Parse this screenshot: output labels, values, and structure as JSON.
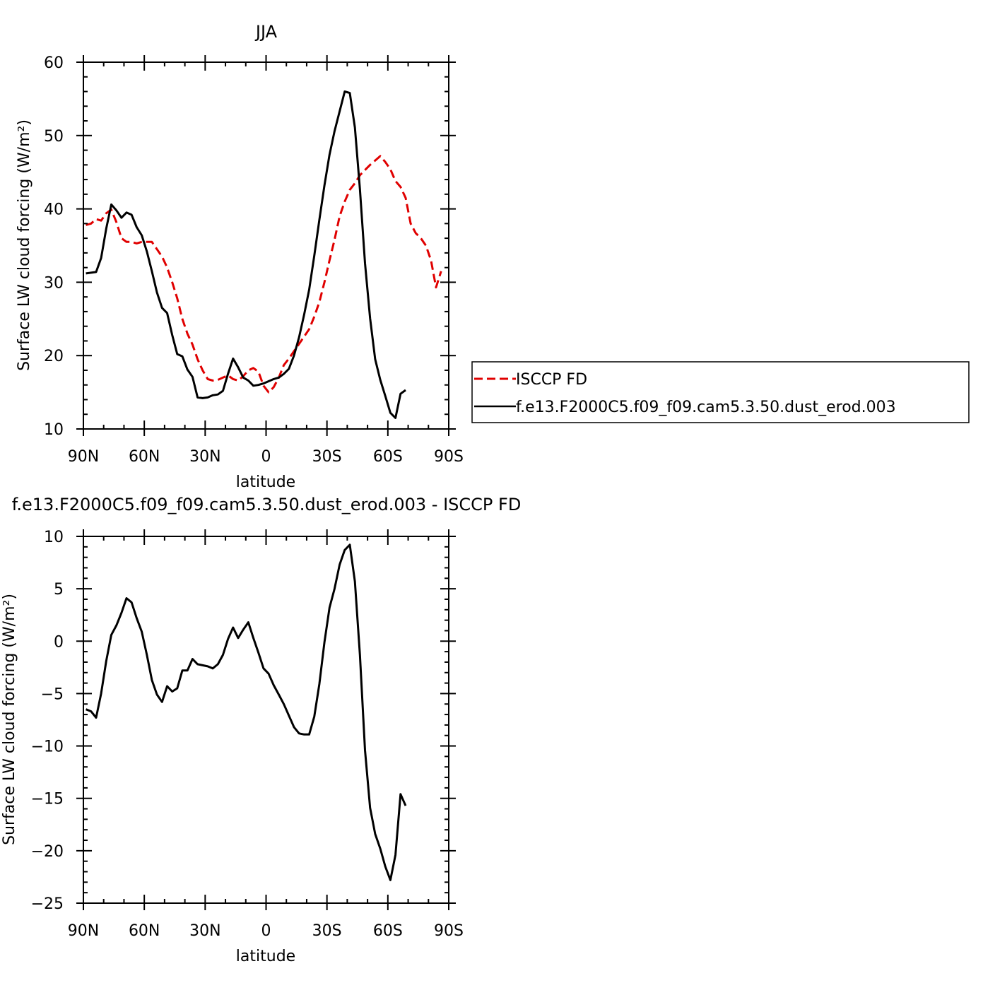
{
  "chart_data": [
    {
      "type": "line",
      "title": "JJA",
      "xlabel": "latitude",
      "ylabel": "Surface LW cloud forcing (W/m²)",
      "xlim": [
        90,
        -90
      ],
      "ylim": [
        10,
        60
      ],
      "x_ticks": [
        {
          "value": 90,
          "label": "90N"
        },
        {
          "value": 60,
          "label": "60N"
        },
        {
          "value": 30,
          "label": "30N"
        },
        {
          "value": 0,
          "label": "0"
        },
        {
          "value": -30,
          "label": "30S"
        },
        {
          "value": -60,
          "label": "60S"
        },
        {
          "value": -90,
          "label": "90S"
        }
      ],
      "y_ticks": [
        10,
        20,
        30,
        40,
        50,
        60
      ],
      "legend": {
        "placement": "right"
      },
      "series": [
        {
          "name": "ISCCP FD",
          "color": "#e00000",
          "dash": "dashed",
          "points": [
            [
              88.75,
              37.8
            ],
            [
              86.25,
              38.0
            ],
            [
              83.75,
              38.6
            ],
            [
              81.25,
              38.4
            ],
            [
              78.75,
              39.4
            ],
            [
              76.25,
              39.9
            ],
            [
              73.75,
              38.2
            ],
            [
              71.25,
              36.0
            ],
            [
              68.75,
              35.5
            ],
            [
              66.25,
              35.5
            ],
            [
              63.75,
              35.3
            ],
            [
              61.25,
              35.5
            ],
            [
              58.75,
              35.5
            ],
            [
              56.25,
              35.5
            ],
            [
              53.75,
              34.5
            ],
            [
              51.25,
              33.5
            ],
            [
              48.75,
              32.0
            ],
            [
              46.25,
              30.0
            ],
            [
              43.75,
              27.8
            ],
            [
              41.25,
              25.0
            ],
            [
              38.75,
              23.0
            ],
            [
              36.25,
              21.5
            ],
            [
              33.75,
              19.5
            ],
            [
              31.25,
              18.0
            ],
            [
              28.75,
              16.8
            ],
            [
              26.25,
              16.6
            ],
            [
              23.75,
              16.7
            ],
            [
              21.25,
              17.0
            ],
            [
              18.75,
              17.3
            ],
            [
              16.25,
              16.8
            ],
            [
              13.75,
              16.6
            ],
            [
              11.25,
              17.2
            ],
            [
              8.75,
              18.0
            ],
            [
              6.25,
              18.3
            ],
            [
              3.75,
              17.8
            ],
            [
              1.25,
              15.9
            ],
            [
              -1.25,
              15.0
            ],
            [
              -3.75,
              15.7
            ],
            [
              -6.25,
              17.0
            ],
            [
              -8.75,
              18.7
            ],
            [
              -11.25,
              19.6
            ],
            [
              -13.75,
              20.6
            ],
            [
              -16.25,
              21.6
            ],
            [
              -18.75,
              22.6
            ],
            [
              -21.25,
              23.6
            ],
            [
              -23.75,
              25.3
            ],
            [
              -26.25,
              27.3
            ],
            [
              -28.75,
              30.0
            ],
            [
              -31.25,
              33.0
            ],
            [
              -33.75,
              35.8
            ],
            [
              -36.25,
              39.0
            ],
            [
              -38.75,
              41.0
            ],
            [
              -41.25,
              42.6
            ],
            [
              -43.75,
              43.5
            ],
            [
              -46.25,
              44.6
            ],
            [
              -48.75,
              45.3
            ],
            [
              -51.25,
              46.0
            ],
            [
              -53.75,
              46.6
            ],
            [
              -56.25,
              47.2
            ],
            [
              -58.75,
              46.4
            ],
            [
              -61.25,
              45.4
            ],
            [
              -63.75,
              43.8
            ],
            [
              -66.25,
              43.0
            ],
            [
              -68.75,
              41.5
            ],
            [
              -71.25,
              38.0
            ],
            [
              -73.75,
              36.7
            ],
            [
              -76.25,
              36.0
            ],
            [
              -78.75,
              35.0
            ],
            [
              -81.25,
              33.0
            ],
            [
              -83.75,
              29.3
            ],
            [
              -86.25,
              31.5
            ]
          ]
        },
        {
          "name": "f.e13.F2000C5.f09_f09.cam5.3.50.dust_erod.003",
          "color": "#000000",
          "dash": "solid",
          "points": [
            [
              88.75,
              31.2
            ],
            [
              86.25,
              31.3
            ],
            [
              83.75,
              31.4
            ],
            [
              81.25,
              33.3
            ],
            [
              78.75,
              37.3
            ],
            [
              76.25,
              40.6
            ],
            [
              73.75,
              39.8
            ],
            [
              71.25,
              38.8
            ],
            [
              68.75,
              39.5
            ],
            [
              66.25,
              39.2
            ],
            [
              63.75,
              37.5
            ],
            [
              61.25,
              36.4
            ],
            [
              58.75,
              34.2
            ],
            [
              56.25,
              31.5
            ],
            [
              53.75,
              28.6
            ],
            [
              51.25,
              26.5
            ],
            [
              48.75,
              25.8
            ],
            [
              46.25,
              22.8
            ],
            [
              43.75,
              20.2
            ],
            [
              41.25,
              19.9
            ],
            [
              38.75,
              18.1
            ],
            [
              36.25,
              17.1
            ],
            [
              33.75,
              14.3
            ],
            [
              31.25,
              14.2
            ],
            [
              28.75,
              14.3
            ],
            [
              26.25,
              14.6
            ],
            [
              23.75,
              14.7
            ],
            [
              21.25,
              15.2
            ],
            [
              18.75,
              17.5
            ],
            [
              16.25,
              19.6
            ],
            [
              13.75,
              18.4
            ],
            [
              11.25,
              17.0
            ],
            [
              8.75,
              16.6
            ],
            [
              6.25,
              15.9
            ],
            [
              3.75,
              16.0
            ],
            [
              1.25,
              16.2
            ],
            [
              -1.25,
              16.5
            ],
            [
              -3.75,
              16.8
            ],
            [
              -6.25,
              17.0
            ],
            [
              -8.75,
              17.5
            ],
            [
              -11.25,
              18.2
            ],
            [
              -13.75,
              20.0
            ],
            [
              -16.25,
              22.5
            ],
            [
              -18.75,
              25.6
            ],
            [
              -21.25,
              29.0
            ],
            [
              -23.75,
              33.6
            ],
            [
              -26.25,
              38.5
            ],
            [
              -28.75,
              43.2
            ],
            [
              -31.25,
              47.4
            ],
            [
              -33.75,
              50.6
            ],
            [
              -36.25,
              53.3
            ],
            [
              -38.75,
              56.0
            ],
            [
              -41.25,
              55.8
            ],
            [
              -43.75,
              51.1
            ],
            [
              -46.25,
              42.7
            ],
            [
              -48.75,
              32.6
            ],
            [
              -51.25,
              25.1
            ],
            [
              -53.75,
              19.5
            ],
            [
              -56.25,
              16.7
            ],
            [
              -58.75,
              14.5
            ],
            [
              -61.25,
              12.2
            ],
            [
              -63.75,
              11.5
            ],
            [
              -66.25,
              14.8
            ],
            [
              -68.75,
              15.3
            ]
          ]
        }
      ]
    },
    {
      "type": "line",
      "title": "f.e13.F2000C5.f09_f09.cam5.3.50.dust_erod.003 - ISCCP FD",
      "xlabel": "latitude",
      "ylabel": "Surface LW cloud forcing (W/m²)",
      "xlim": [
        90,
        -90
      ],
      "ylim": [
        -25,
        10
      ],
      "x_ticks": [
        {
          "value": 90,
          "label": "90N"
        },
        {
          "value": 60,
          "label": "60N"
        },
        {
          "value": 30,
          "label": "30N"
        },
        {
          "value": 0,
          "label": "0"
        },
        {
          "value": -30,
          "label": "30S"
        },
        {
          "value": -60,
          "label": "60S"
        },
        {
          "value": -90,
          "label": "90S"
        }
      ],
      "y_ticks": [
        -25,
        -20,
        -15,
        -10,
        -5,
        0,
        5,
        10
      ],
      "series": [
        {
          "color": "#000000",
          "dash": "solid",
          "points": [
            [
              88.75,
              -6.5
            ],
            [
              86.25,
              -6.7
            ],
            [
              83.75,
              -7.3
            ],
            [
              81.25,
              -5.0
            ],
            [
              78.75,
              -1.9
            ],
            [
              76.25,
              0.6
            ],
            [
              73.75,
              1.5
            ],
            [
              71.25,
              2.7
            ],
            [
              68.75,
              4.1
            ],
            [
              66.25,
              3.7
            ],
            [
              63.75,
              2.2
            ],
            [
              61.25,
              0.9
            ],
            [
              58.75,
              -1.3
            ],
            [
              56.25,
              -3.7
            ],
            [
              53.75,
              -5.1
            ],
            [
              51.25,
              -5.8
            ],
            [
              48.75,
              -4.3
            ],
            [
              46.25,
              -4.8
            ],
            [
              43.75,
              -4.5
            ],
            [
              41.25,
              -2.8
            ],
            [
              38.75,
              -2.8
            ],
            [
              36.25,
              -1.7
            ],
            [
              33.75,
              -2.2
            ],
            [
              31.25,
              -2.3
            ],
            [
              28.75,
              -2.4
            ],
            [
              26.25,
              -2.6
            ],
            [
              23.75,
              -2.2
            ],
            [
              21.25,
              -1.3
            ],
            [
              18.75,
              0.2
            ],
            [
              16.25,
              1.3
            ],
            [
              13.75,
              0.3
            ],
            [
              11.25,
              1.1
            ],
            [
              8.75,
              1.8
            ],
            [
              6.25,
              0.3
            ],
            [
              3.75,
              -1.1
            ],
            [
              1.25,
              -2.6
            ],
            [
              -1.25,
              -3.1
            ],
            [
              -3.75,
              -4.2
            ],
            [
              -6.25,
              -5.1
            ],
            [
              -8.75,
              -6.0
            ],
            [
              -11.25,
              -7.1
            ],
            [
              -13.75,
              -8.2
            ],
            [
              -16.25,
              -8.8
            ],
            [
              -18.75,
              -8.9
            ],
            [
              -21.25,
              -8.9
            ],
            [
              -23.75,
              -7.2
            ],
            [
              -26.25,
              -4.1
            ],
            [
              -28.75,
              -0.1
            ],
            [
              -31.25,
              3.2
            ],
            [
              -33.75,
              5.0
            ],
            [
              -36.25,
              7.3
            ],
            [
              -38.75,
              8.7
            ],
            [
              -41.25,
              9.2
            ],
            [
              -43.75,
              5.7
            ],
            [
              -46.25,
              -1.3
            ],
            [
              -48.75,
              -10.4
            ],
            [
              -51.25,
              -15.9
            ],
            [
              -53.75,
              -18.4
            ],
            [
              -56.25,
              -19.8
            ],
            [
              -58.75,
              -21.5
            ],
            [
              -61.25,
              -22.8
            ],
            [
              -63.75,
              -20.4
            ],
            [
              -66.25,
              -14.6
            ],
            [
              -68.75,
              -15.7
            ]
          ]
        }
      ]
    }
  ]
}
